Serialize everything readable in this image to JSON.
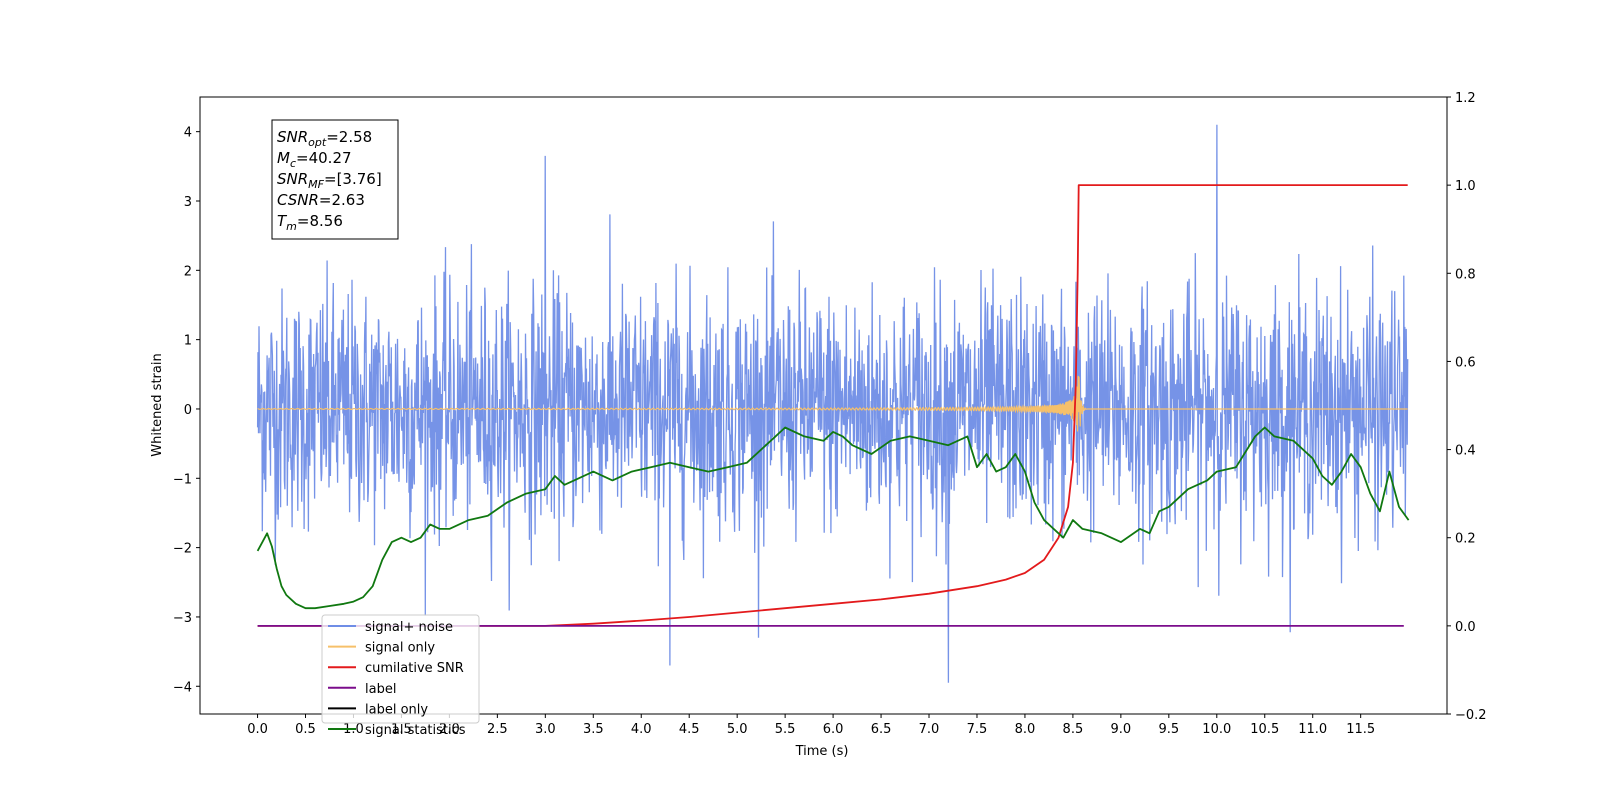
{
  "chart_data": {
    "type": "line",
    "xlabel": "Time (s)",
    "ylabel": "Whitened strain",
    "xlim": [
      -0.6,
      12.4
    ],
    "ylim": [
      -4.4,
      4.5
    ],
    "ylim_right": [
      -0.2,
      1.2
    ],
    "x_ticks": [
      "0.0",
      "0.5",
      "1.0",
      "1.5",
      "2.0",
      "2.5",
      "3.0",
      "3.5",
      "4.0",
      "4.5",
      "5.0",
      "5.5",
      "6.0",
      "6.5",
      "7.0",
      "7.5",
      "8.0",
      "8.5",
      "9.0",
      "9.5",
      "10.0",
      "10.5",
      "11.0",
      "11.5"
    ],
    "y_ticks_left": [
      "4",
      "3",
      "2",
      "1",
      "0",
      "−1",
      "−2",
      "−3",
      "−4"
    ],
    "y_ticks_right": [
      "1.2",
      "1.0",
      "0.8",
      "0.6",
      "0.4",
      "0.2",
      "0.0",
      "−0.2"
    ],
    "grid": false,
    "legend_position": "lower-left",
    "annotation": {
      "lines": [
        {
          "base": "SNR",
          "sub": "opt",
          "value": "=2.58"
        },
        {
          "base": "M",
          "sub": "c",
          "value": "=40.27"
        },
        {
          "base": "SNR",
          "sub": "MF",
          "value": "=[3.76]"
        },
        {
          "base": "CSNR",
          "sub": "",
          "value": "=2.63"
        },
        {
          "base": "T",
          "sub": "m",
          "value": "=8.56"
        }
      ]
    },
    "series": [
      {
        "name": "signal+ noise",
        "color": "#6f8de6",
        "axis": "left",
        "kind": "noise",
        "x_range": [
          0.0,
          11.99
        ],
        "typical_range": [
          -1.8,
          1.8
        ],
        "peaks": [
          {
            "x": 10.0,
            "y": 4.1
          },
          {
            "x": 7.2,
            "y": -3.95
          },
          {
            "x": 3.0,
            "y": 3.65
          },
          {
            "x": 4.3,
            "y": -3.7
          }
        ]
      },
      {
        "name": "signal only",
        "color": "#f6c06a",
        "axis": "left",
        "kind": "chirp",
        "merger_time": 8.56,
        "peak_amplitude": 0.65
      },
      {
        "name": "cumilative SNR",
        "color": "#e31a1c",
        "axis": "right",
        "x": [
          0.0,
          2.5,
          3.0,
          3.5,
          4.0,
          4.5,
          5.0,
          5.5,
          6.0,
          6.5,
          7.0,
          7.5,
          7.8,
          8.0,
          8.2,
          8.35,
          8.45,
          8.5,
          8.53,
          8.55,
          8.56,
          11.99
        ],
        "values": [
          0.0,
          0.0,
          0.0,
          0.005,
          0.012,
          0.02,
          0.03,
          0.04,
          0.05,
          0.06,
          0.073,
          0.09,
          0.105,
          0.12,
          0.15,
          0.2,
          0.27,
          0.37,
          0.55,
          0.8,
          1.0,
          1.0
        ]
      },
      {
        "name": "label",
        "color": "#7b0d8c",
        "axis": "right",
        "x": [
          0.0,
          11.95
        ],
        "values": [
          0.0,
          0.0
        ]
      },
      {
        "name": "label only",
        "color": "#000000",
        "axis": "right",
        "x": [],
        "values": []
      },
      {
        "name": "signal statistics",
        "color": "#107810",
        "axis": "right",
        "x": [
          0.0,
          0.05,
          0.1,
          0.15,
          0.2,
          0.25,
          0.3,
          0.4,
          0.5,
          0.6,
          0.75,
          0.9,
          1.0,
          1.1,
          1.2,
          1.3,
          1.4,
          1.5,
          1.6,
          1.7,
          1.8,
          1.9,
          2.0,
          2.2,
          2.4,
          2.6,
          2.8,
          3.0,
          3.1,
          3.2,
          3.3,
          3.5,
          3.7,
          3.9,
          4.1,
          4.3,
          4.5,
          4.7,
          4.9,
          5.1,
          5.3,
          5.4,
          5.5,
          5.7,
          5.9,
          6.0,
          6.1,
          6.2,
          6.4,
          6.6,
          6.8,
          7.0,
          7.2,
          7.4,
          7.5,
          7.6,
          7.7,
          7.8,
          7.9,
          8.0,
          8.1,
          8.2,
          8.3,
          8.4,
          8.5,
          8.6,
          8.8,
          8.9,
          9.0,
          9.2,
          9.3,
          9.4,
          9.5,
          9.6,
          9.7,
          9.9,
          10.0,
          10.2,
          10.4,
          10.5,
          10.6,
          10.8,
          11.0,
          11.1,
          11.2,
          11.3,
          11.4,
          11.5,
          11.6,
          11.7,
          11.8,
          11.9,
          12.0
        ],
        "values": [
          0.17,
          0.19,
          0.21,
          0.18,
          0.13,
          0.09,
          0.07,
          0.05,
          0.04,
          0.04,
          0.045,
          0.05,
          0.055,
          0.065,
          0.09,
          0.15,
          0.19,
          0.2,
          0.19,
          0.2,
          0.23,
          0.22,
          0.22,
          0.24,
          0.25,
          0.28,
          0.3,
          0.31,
          0.34,
          0.32,
          0.33,
          0.35,
          0.33,
          0.35,
          0.36,
          0.37,
          0.36,
          0.35,
          0.36,
          0.37,
          0.41,
          0.43,
          0.45,
          0.43,
          0.42,
          0.44,
          0.43,
          0.41,
          0.39,
          0.42,
          0.43,
          0.42,
          0.41,
          0.43,
          0.36,
          0.39,
          0.35,
          0.36,
          0.39,
          0.35,
          0.28,
          0.24,
          0.22,
          0.2,
          0.24,
          0.22,
          0.21,
          0.2,
          0.19,
          0.22,
          0.21,
          0.26,
          0.27,
          0.29,
          0.31,
          0.33,
          0.35,
          0.36,
          0.43,
          0.45,
          0.43,
          0.42,
          0.38,
          0.34,
          0.32,
          0.35,
          0.39,
          0.36,
          0.3,
          0.26,
          0.35,
          0.27,
          0.24
        ]
      }
    ]
  }
}
